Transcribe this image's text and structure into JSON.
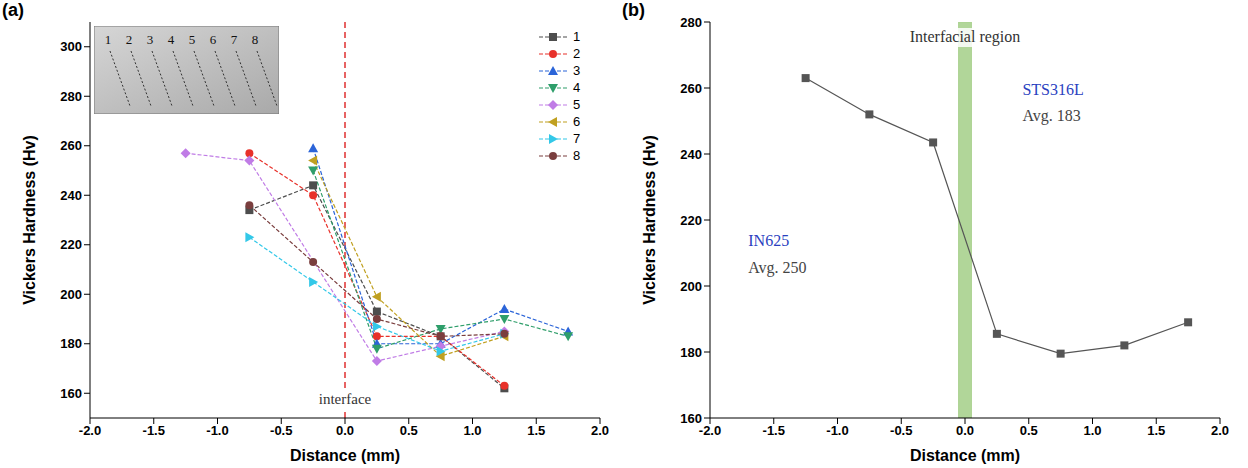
{
  "chart_data": [
    {
      "type": "line",
      "panel": "(a)",
      "x_label": "Distance (mm)",
      "y_label": "Vickers Hardness (Hv)",
      "xlim": [
        -2,
        2
      ],
      "xticks": [
        {
          "value": -2,
          "label": "-2.0"
        },
        {
          "value": -1.5,
          "label": "-1.5"
        },
        {
          "value": -1,
          "label": "-1.0"
        },
        {
          "value": -0.5,
          "label": "-0.5"
        },
        {
          "value": 0,
          "label": "0.0"
        },
        {
          "value": 0.5,
          "label": "0.5"
        },
        {
          "value": 1,
          "label": "1.0"
        },
        {
          "value": 1.5,
          "label": "1.5"
        },
        {
          "value": 2,
          "label": "2.0"
        }
      ],
      "ylim": [
        150,
        310
      ],
      "yticks": [
        160,
        180,
        200,
        220,
        240,
        260,
        280,
        300
      ],
      "legend": "upper right",
      "series": [
        {
          "name": "1",
          "color": "#4d4d4d",
          "marker": "square",
          "x": [
            -0.75,
            -0.25,
            0.25,
            0.75,
            1.25
          ],
          "values": [
            234,
            244,
            193,
            183,
            162
          ]
        },
        {
          "name": "2",
          "color": "#e8312a",
          "marker": "circle",
          "x": [
            -0.75,
            -0.25,
            0.25,
            0.75,
            1.25
          ],
          "values": [
            257,
            240,
            183,
            183,
            163
          ]
        },
        {
          "name": "3",
          "color": "#2b64d8",
          "marker": "triangle-up",
          "x": [
            -0.25,
            0.25,
            0.75,
            1.25,
            1.75
          ],
          "values": [
            259,
            180,
            180,
            194,
            185
          ]
        },
        {
          "name": "4",
          "color": "#2e9e6a",
          "marker": "triangle-down",
          "x": [
            -0.25,
            0.25,
            0.75,
            1.25,
            1.75
          ],
          "values": [
            250,
            178,
            186,
            190,
            183
          ]
        },
        {
          "name": "5",
          "color": "#c07ce6",
          "marker": "diamond",
          "x": [
            -1.25,
            -0.75,
            0.25,
            0.75,
            1.25
          ],
          "values": [
            257,
            254,
            173,
            179,
            185
          ]
        },
        {
          "name": "6",
          "color": "#c0a020",
          "marker": "triangle-left",
          "x": [
            -0.25,
            0.25,
            0.75,
            1.25
          ],
          "values": [
            254,
            199,
            175,
            183
          ]
        },
        {
          "name": "7",
          "color": "#33c8e8",
          "marker": "triangle-right",
          "x": [
            -0.75,
            -0.25,
            0.25,
            0.75,
            1.25
          ],
          "values": [
            223,
            205,
            187,
            177,
            184
          ]
        },
        {
          "name": "8",
          "color": "#7a3e3e",
          "marker": "circle",
          "x": [
            -0.75,
            -0.25,
            0.25,
            0.75,
            1.25
          ],
          "values": [
            236,
            213,
            190,
            183,
            184
          ]
        }
      ],
      "annotations": [
        {
          "text": "interface",
          "x": 0,
          "color": "#e03030",
          "line_style": "dashed"
        }
      ],
      "inset_labels": [
        "1",
        "2",
        "3",
        "4",
        "5",
        "6",
        "7",
        "8"
      ]
    },
    {
      "type": "line",
      "panel": "(b)",
      "x_label": "Distance (mm)",
      "y_label": "Vickers Hardness (Hv)",
      "xlim": [
        -2,
        2
      ],
      "xticks": [
        {
          "value": -2,
          "label": "-2.0"
        },
        {
          "value": -1.5,
          "label": "-1.5"
        },
        {
          "value": -1,
          "label": "-1.0"
        },
        {
          "value": -0.5,
          "label": "-0.5"
        },
        {
          "value": 0,
          "label": "0.0"
        },
        {
          "value": 0.5,
          "label": "0.5"
        },
        {
          "value": 1,
          "label": "1.0"
        },
        {
          "value": 1.5,
          "label": "1.5"
        },
        {
          "value": 2,
          "label": "2.0"
        }
      ],
      "ylim": [
        160,
        280
      ],
      "yticks": [
        160,
        180,
        200,
        220,
        240,
        260,
        280
      ],
      "series": [
        {
          "color": "#555555",
          "marker": "square",
          "x": [
            -1.25,
            -0.75,
            -0.25,
            0.25,
            0.75,
            1.25,
            1.75
          ],
          "values": [
            263,
            252,
            243.5,
            185.5,
            179.5,
            182,
            189
          ]
        }
      ],
      "interfacial_region": {
        "text": "Interfacial region",
        "x": [
          -0.05,
          0.05
        ],
        "color": "#a9d18e"
      },
      "annotations": [
        {
          "text": "IN625",
          "x": -1.7,
          "y": 212,
          "color": "#2a3fbf"
        },
        {
          "text": "Avg. 250",
          "x": -1.7,
          "y": 204,
          "color": "#444444"
        },
        {
          "text": "STS316L",
          "x": 0.45,
          "y": 258,
          "color": "#2a3fbf"
        },
        {
          "text": "Avg. 183",
          "x": 0.45,
          "y": 250,
          "color": "#444444"
        }
      ]
    }
  ]
}
